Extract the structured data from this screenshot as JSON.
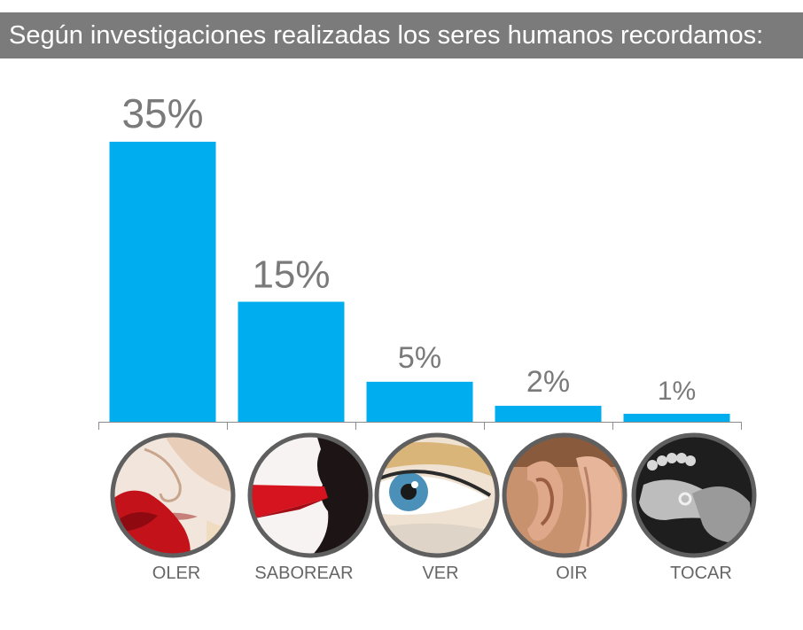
{
  "title": "Según investigaciones realizadas los seres humanos recordamos:",
  "colors": {
    "bar": "#00aeef",
    "title_bg": "#7b7b7b",
    "label": "#7a7a7a",
    "axis": "#8c8c8c"
  },
  "chart_data": {
    "type": "bar",
    "categories": [
      "OLER",
      "SABOREAR",
      "VER",
      "OIR",
      "TOCAR"
    ],
    "values": [
      35,
      15,
      5,
      2,
      1
    ],
    "data_labels": [
      "35%",
      "15%",
      "5%",
      "2%",
      "1%"
    ],
    "title": "Según investigaciones realizadas los seres humanos recordamos:",
    "xlabel": "",
    "ylabel": "",
    "grid": false,
    "legend": "none"
  },
  "photos": [
    {
      "category": "OLER",
      "icon": "nose-smelling-rose-icon"
    },
    {
      "category": "SABOREAR",
      "icon": "mouth-tasting-wine-icon"
    },
    {
      "category": "VER",
      "icon": "eye-icon"
    },
    {
      "category": "OIR",
      "icon": "ear-listening-icon"
    },
    {
      "category": "TOCAR",
      "icon": "hands-touching-icon"
    }
  ]
}
